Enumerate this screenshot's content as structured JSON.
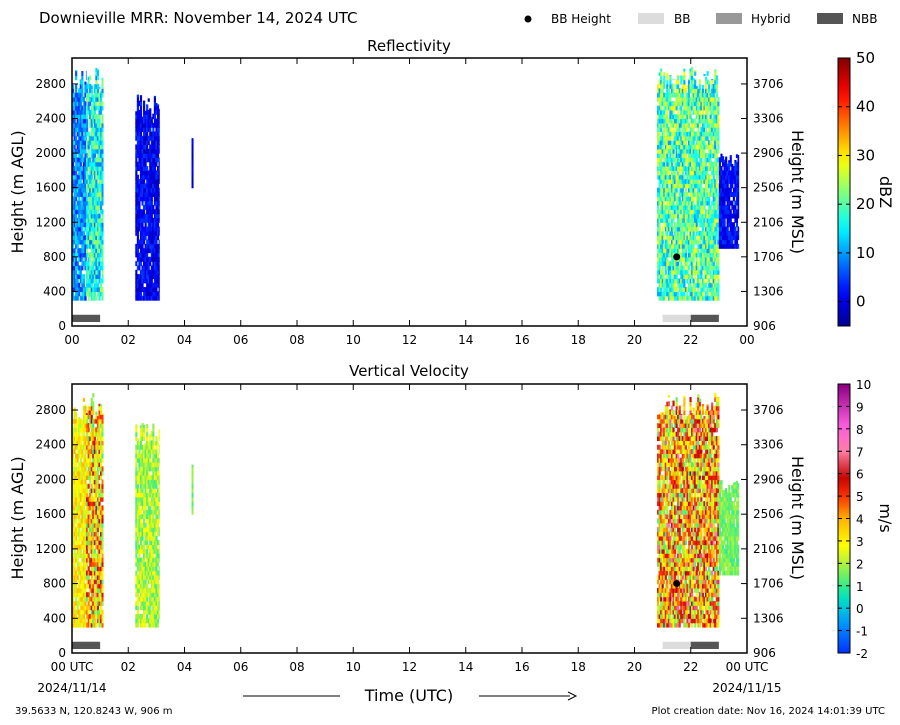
{
  "header": {
    "title": "Downieville MRR:  November 14, 2024 UTC",
    "legend": [
      {
        "label": "BB Height",
        "kind": "dot",
        "color": "#000000"
      },
      {
        "label": "BB",
        "kind": "rect",
        "color": "#dcdcdc"
      },
      {
        "label": "Hybrid",
        "kind": "rect",
        "color": "#999999"
      },
      {
        "label": "NBB",
        "kind": "rect",
        "color": "#555555"
      }
    ]
  },
  "colors": {
    "bb": "#dcdcdc",
    "nbb": "#555555",
    "hybrid": "#999999",
    "bb_height_marker": "#000000"
  },
  "chart_data": [
    {
      "type": "heatmap",
      "title": "Reflectivity",
      "ylabel": "Height (m AGL)",
      "y2label": "Height (m MSL)",
      "colorbar_label": "dBZ",
      "colorbar_range": [
        -5,
        50
      ],
      "colorbar_ticks": [
        "0",
        "10",
        "20",
        "30",
        "40",
        "50"
      ],
      "colorbar_tick_values": [
        0,
        10,
        20,
        30,
        40,
        50
      ],
      "colormap": "jet",
      "xlim": [
        0,
        24
      ],
      "ylim": [
        0,
        3100
      ],
      "x_ticks": [
        "00",
        "02",
        "04",
        "06",
        "08",
        "10",
        "12",
        "14",
        "16",
        "18",
        "20",
        "22",
        "00"
      ],
      "y_ticks": [
        0,
        400,
        800,
        1200,
        1600,
        2000,
        2400,
        2800
      ],
      "y2_ticks": [
        906,
        1306,
        1706,
        2106,
        2506,
        2906,
        3306,
        3706
      ],
      "data_regions": [
        {
          "x0": 0.0,
          "x1": 0.5,
          "y0": 300,
          "y1": 3000,
          "value_range": [
            3,
            15
          ]
        },
        {
          "x0": 0.5,
          "x1": 1.1,
          "y0": 300,
          "y1": 3000,
          "value_range": [
            8,
            25
          ]
        },
        {
          "x0": 2.25,
          "x1": 3.1,
          "y0": 300,
          "y1": 2700,
          "value_range": [
            -3,
            5
          ]
        },
        {
          "x0": 4.25,
          "x1": 4.3,
          "y0": 1600,
          "y1": 2200,
          "value_range": [
            -3,
            2
          ]
        },
        {
          "x0": 20.8,
          "x1": 23.0,
          "y0": 300,
          "y1": 3000,
          "value_range": [
            10,
            30
          ]
        },
        {
          "x0": 23.0,
          "x1": 23.7,
          "y0": 900,
          "y1": 2000,
          "value_range": [
            -2,
            5
          ]
        }
      ],
      "bb_heights": [
        {
          "x": 21.5,
          "y": 800
        }
      ],
      "classification": [
        {
          "x0": 0.0,
          "x1": 1.0,
          "type": "NBB"
        },
        {
          "x0": 21.0,
          "x1": 22.0,
          "type": "BB"
        },
        {
          "x0": 22.0,
          "x1": 23.0,
          "type": "NBB"
        }
      ]
    },
    {
      "type": "heatmap",
      "title": "Vertical Velocity",
      "ylabel": "Height (m AGL)",
      "y2label": "Height (m MSL)",
      "colorbar_label": "m/s",
      "colorbar_range": [
        -2,
        10
      ],
      "colorbar_ticks": [
        "-2",
        "-1",
        "0",
        "1",
        "2",
        "3",
        "4",
        "5",
        "6",
        "7",
        "8",
        "9",
        "10"
      ],
      "colorbar_tick_values": [
        -2,
        -1,
        0,
        1,
        2,
        3,
        4,
        5,
        6,
        7,
        8,
        9,
        10
      ],
      "colormap": "velocity",
      "xlim": [
        0,
        24
      ],
      "ylim": [
        0,
        3100
      ],
      "x_ticks": [
        "00 UTC",
        "02",
        "04",
        "06",
        "08",
        "10",
        "12",
        "14",
        "16",
        "18",
        "20",
        "22",
        "00 UTC"
      ],
      "x_date_start": "2024/11/14",
      "x_date_end": "2024/11/15",
      "xlabel": "Time (UTC)",
      "y_ticks": [
        0,
        400,
        800,
        1200,
        1600,
        2000,
        2400,
        2800
      ],
      "y2_ticks": [
        906,
        1306,
        1706,
        2106,
        2506,
        2906,
        3306,
        3706
      ],
      "data_regions": [
        {
          "x0": 0.0,
          "x1": 0.5,
          "y0": 300,
          "y1": 3000,
          "value_range": [
            2,
            4
          ]
        },
        {
          "x0": 0.5,
          "x1": 1.1,
          "y0": 300,
          "y1": 3000,
          "value_range": [
            1,
            6
          ]
        },
        {
          "x0": 2.25,
          "x1": 3.1,
          "y0": 300,
          "y1": 2700,
          "value_range": [
            1,
            3
          ]
        },
        {
          "x0": 4.25,
          "x1": 4.3,
          "y0": 1600,
          "y1": 2200,
          "value_range": [
            1,
            2
          ]
        },
        {
          "x0": 20.8,
          "x1": 23.0,
          "y0": 300,
          "y1": 3000,
          "value_range": [
            1,
            7
          ]
        },
        {
          "x0": 23.0,
          "x1": 23.7,
          "y0": 900,
          "y1": 2000,
          "value_range": [
            1,
            2
          ]
        }
      ],
      "bb_heights": [
        {
          "x": 21.5,
          "y": 800
        }
      ],
      "classification": [
        {
          "x0": 0.0,
          "x1": 1.0,
          "type": "NBB"
        },
        {
          "x0": 21.0,
          "x1": 22.0,
          "type": "BB"
        },
        {
          "x0": 22.0,
          "x1": 23.0,
          "type": "NBB"
        }
      ]
    }
  ],
  "footer": {
    "location": "39.5633 N, 120.8243 W, 906 m",
    "creation_date": "Plot creation date: Nov 16, 2024 14:01:39 UTC"
  }
}
